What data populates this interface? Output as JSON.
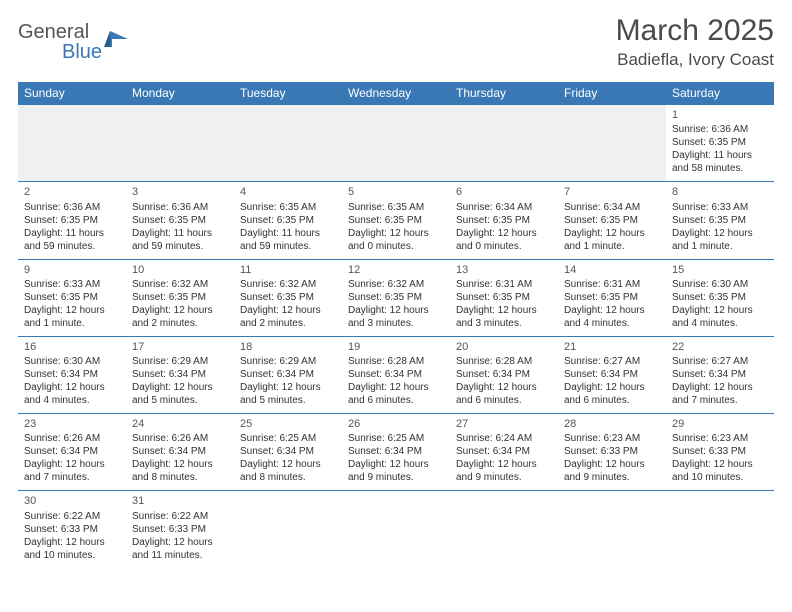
{
  "logo": {
    "text1": "General",
    "text2": "Blue"
  },
  "title": "March 2025",
  "location": "Badiefla, Ivory Coast",
  "day_headers": [
    "Sunday",
    "Monday",
    "Tuesday",
    "Wednesday",
    "Thursday",
    "Friday",
    "Saturday"
  ],
  "colors": {
    "header_bg": "#3a78b5",
    "header_text": "#ffffff",
    "border": "#3a78b5",
    "muted_bg": "#eef0f2",
    "text": "#333333",
    "title_text": "#4a4a4a"
  },
  "typography": {
    "title_fontsize": 30,
    "location_fontsize": 17,
    "dayheader_fontsize": 12,
    "cell_fontsize": 10,
    "daynum_fontsize": 11
  },
  "weeks": [
    [
      null,
      null,
      null,
      null,
      null,
      null,
      {
        "d": "1",
        "sr": "Sunrise: 6:36 AM",
        "ss": "Sunset: 6:35 PM",
        "dl1": "Daylight: 11 hours",
        "dl2": "and 58 minutes."
      }
    ],
    [
      {
        "d": "2",
        "sr": "Sunrise: 6:36 AM",
        "ss": "Sunset: 6:35 PM",
        "dl1": "Daylight: 11 hours",
        "dl2": "and 59 minutes."
      },
      {
        "d": "3",
        "sr": "Sunrise: 6:36 AM",
        "ss": "Sunset: 6:35 PM",
        "dl1": "Daylight: 11 hours",
        "dl2": "and 59 minutes."
      },
      {
        "d": "4",
        "sr": "Sunrise: 6:35 AM",
        "ss": "Sunset: 6:35 PM",
        "dl1": "Daylight: 11 hours",
        "dl2": "and 59 minutes."
      },
      {
        "d": "5",
        "sr": "Sunrise: 6:35 AM",
        "ss": "Sunset: 6:35 PM",
        "dl1": "Daylight: 12 hours",
        "dl2": "and 0 minutes."
      },
      {
        "d": "6",
        "sr": "Sunrise: 6:34 AM",
        "ss": "Sunset: 6:35 PM",
        "dl1": "Daylight: 12 hours",
        "dl2": "and 0 minutes."
      },
      {
        "d": "7",
        "sr": "Sunrise: 6:34 AM",
        "ss": "Sunset: 6:35 PM",
        "dl1": "Daylight: 12 hours",
        "dl2": "and 1 minute."
      },
      {
        "d": "8",
        "sr": "Sunrise: 6:33 AM",
        "ss": "Sunset: 6:35 PM",
        "dl1": "Daylight: 12 hours",
        "dl2": "and 1 minute."
      }
    ],
    [
      {
        "d": "9",
        "sr": "Sunrise: 6:33 AM",
        "ss": "Sunset: 6:35 PM",
        "dl1": "Daylight: 12 hours",
        "dl2": "and 1 minute."
      },
      {
        "d": "10",
        "sr": "Sunrise: 6:32 AM",
        "ss": "Sunset: 6:35 PM",
        "dl1": "Daylight: 12 hours",
        "dl2": "and 2 minutes."
      },
      {
        "d": "11",
        "sr": "Sunrise: 6:32 AM",
        "ss": "Sunset: 6:35 PM",
        "dl1": "Daylight: 12 hours",
        "dl2": "and 2 minutes."
      },
      {
        "d": "12",
        "sr": "Sunrise: 6:32 AM",
        "ss": "Sunset: 6:35 PM",
        "dl1": "Daylight: 12 hours",
        "dl2": "and 3 minutes."
      },
      {
        "d": "13",
        "sr": "Sunrise: 6:31 AM",
        "ss": "Sunset: 6:35 PM",
        "dl1": "Daylight: 12 hours",
        "dl2": "and 3 minutes."
      },
      {
        "d": "14",
        "sr": "Sunrise: 6:31 AM",
        "ss": "Sunset: 6:35 PM",
        "dl1": "Daylight: 12 hours",
        "dl2": "and 4 minutes."
      },
      {
        "d": "15",
        "sr": "Sunrise: 6:30 AM",
        "ss": "Sunset: 6:35 PM",
        "dl1": "Daylight: 12 hours",
        "dl2": "and 4 minutes."
      }
    ],
    [
      {
        "d": "16",
        "sr": "Sunrise: 6:30 AM",
        "ss": "Sunset: 6:34 PM",
        "dl1": "Daylight: 12 hours",
        "dl2": "and 4 minutes."
      },
      {
        "d": "17",
        "sr": "Sunrise: 6:29 AM",
        "ss": "Sunset: 6:34 PM",
        "dl1": "Daylight: 12 hours",
        "dl2": "and 5 minutes."
      },
      {
        "d": "18",
        "sr": "Sunrise: 6:29 AM",
        "ss": "Sunset: 6:34 PM",
        "dl1": "Daylight: 12 hours",
        "dl2": "and 5 minutes."
      },
      {
        "d": "19",
        "sr": "Sunrise: 6:28 AM",
        "ss": "Sunset: 6:34 PM",
        "dl1": "Daylight: 12 hours",
        "dl2": "and 6 minutes."
      },
      {
        "d": "20",
        "sr": "Sunrise: 6:28 AM",
        "ss": "Sunset: 6:34 PM",
        "dl1": "Daylight: 12 hours",
        "dl2": "and 6 minutes."
      },
      {
        "d": "21",
        "sr": "Sunrise: 6:27 AM",
        "ss": "Sunset: 6:34 PM",
        "dl1": "Daylight: 12 hours",
        "dl2": "and 6 minutes."
      },
      {
        "d": "22",
        "sr": "Sunrise: 6:27 AM",
        "ss": "Sunset: 6:34 PM",
        "dl1": "Daylight: 12 hours",
        "dl2": "and 7 minutes."
      }
    ],
    [
      {
        "d": "23",
        "sr": "Sunrise: 6:26 AM",
        "ss": "Sunset: 6:34 PM",
        "dl1": "Daylight: 12 hours",
        "dl2": "and 7 minutes."
      },
      {
        "d": "24",
        "sr": "Sunrise: 6:26 AM",
        "ss": "Sunset: 6:34 PM",
        "dl1": "Daylight: 12 hours",
        "dl2": "and 8 minutes."
      },
      {
        "d": "25",
        "sr": "Sunrise: 6:25 AM",
        "ss": "Sunset: 6:34 PM",
        "dl1": "Daylight: 12 hours",
        "dl2": "and 8 minutes."
      },
      {
        "d": "26",
        "sr": "Sunrise: 6:25 AM",
        "ss": "Sunset: 6:34 PM",
        "dl1": "Daylight: 12 hours",
        "dl2": "and 9 minutes."
      },
      {
        "d": "27",
        "sr": "Sunrise: 6:24 AM",
        "ss": "Sunset: 6:34 PM",
        "dl1": "Daylight: 12 hours",
        "dl2": "and 9 minutes."
      },
      {
        "d": "28",
        "sr": "Sunrise: 6:23 AM",
        "ss": "Sunset: 6:33 PM",
        "dl1": "Daylight: 12 hours",
        "dl2": "and 9 minutes."
      },
      {
        "d": "29",
        "sr": "Sunrise: 6:23 AM",
        "ss": "Sunset: 6:33 PM",
        "dl1": "Daylight: 12 hours",
        "dl2": "and 10 minutes."
      }
    ],
    [
      {
        "d": "30",
        "sr": "Sunrise: 6:22 AM",
        "ss": "Sunset: 6:33 PM",
        "dl1": "Daylight: 12 hours",
        "dl2": "and 10 minutes."
      },
      {
        "d": "31",
        "sr": "Sunrise: 6:22 AM",
        "ss": "Sunset: 6:33 PM",
        "dl1": "Daylight: 12 hours",
        "dl2": "and 11 minutes."
      },
      null,
      null,
      null,
      null,
      null
    ]
  ]
}
